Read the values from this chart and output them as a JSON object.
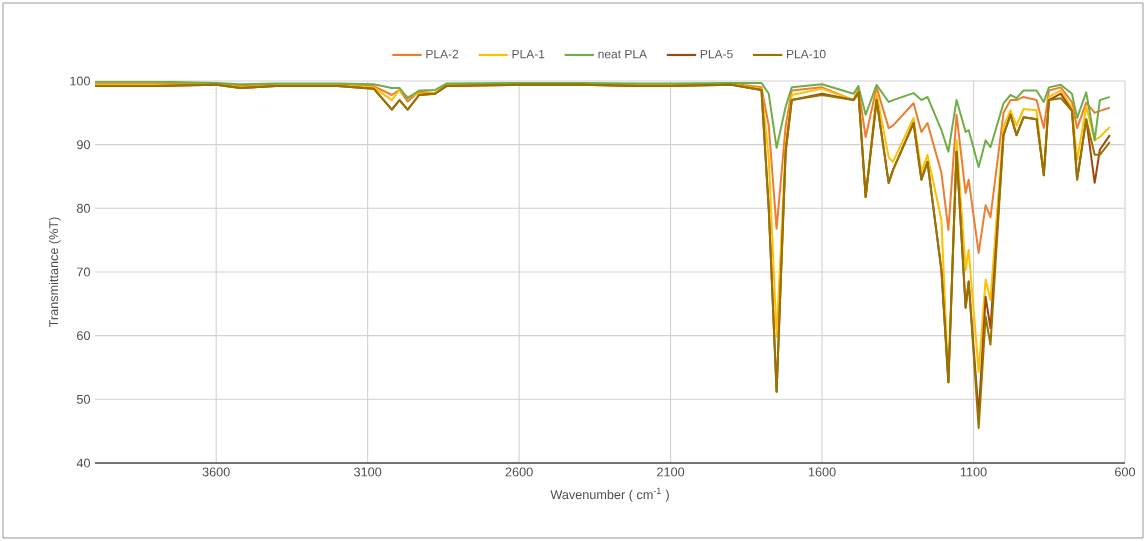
{
  "chart_data": {
    "type": "line",
    "xlabel": "Wavenumber ( cm$^{-1}$ )",
    "ylabel": "Transmittance (%T)",
    "x": [
      4000,
      3800,
      3600,
      3520,
      3400,
      3200,
      3080,
      3020,
      2995,
      2968,
      2930,
      2877,
      2840,
      2600,
      2400,
      2209,
      2100,
      1900,
      1800,
      1776,
      1750,
      1720,
      1700,
      1600,
      1496,
      1480,
      1456,
      1420,
      1380,
      1366,
      1298,
      1272,
      1252,
      1206,
      1183,
      1156,
      1126,
      1116,
      1083,
      1060,
      1044,
      1001,
      978,
      958,
      935,
      892,
      868,
      851,
      812,
      775,
      758,
      728,
      700,
      683,
      650
    ],
    "series": [
      {
        "name": "PLA-2",
        "color": "#ed7d31",
        "values": [
          99.6,
          99.6,
          99.6,
          99.2,
          99.4,
          99.4,
          99.2,
          97.8,
          98.6,
          96.8,
          98.3,
          98.1,
          99.4,
          99.6,
          99.6,
          99.4,
          99.4,
          99.6,
          99,
          93,
          76.8,
          93,
          98.5,
          99,
          97,
          98.8,
          91.2,
          99,
          92.6,
          93,
          96.5,
          92,
          93.4,
          85.6,
          76.6,
          94.7,
          82.4,
          84.5,
          73,
          80.5,
          78.6,
          95,
          97,
          97,
          97.5,
          97,
          92.6,
          98.5,
          99,
          96.7,
          92.6,
          96.6,
          95,
          95.3,
          95.8
        ]
      },
      {
        "name": "PLA-1",
        "color": "#ffc000",
        "values": [
          99.4,
          99.4,
          99.5,
          99,
          99.3,
          99.3,
          99,
          97,
          98.6,
          97.5,
          98,
          98.1,
          99.3,
          99.5,
          99.5,
          99.3,
          99.3,
          99.5,
          98.8,
          88,
          59.8,
          90,
          97.8,
          98.8,
          97,
          98.5,
          81.8,
          98,
          88,
          87.3,
          94.2,
          85.7,
          88.4,
          78.2,
          52.7,
          90.7,
          70.3,
          73.5,
          54.3,
          68.8,
          65.6,
          92.8,
          95.4,
          93,
          95.6,
          95.4,
          85.2,
          97.5,
          98.5,
          95.8,
          87.6,
          96,
          90.7,
          91.2,
          92.8
        ]
      },
      {
        "name": "neat PLA",
        "color": "#70ad47",
        "values": [
          99.9,
          99.9,
          99.7,
          99.5,
          99.6,
          99.6,
          99.5,
          98.9,
          98.9,
          97.3,
          98.5,
          98.6,
          99.6,
          99.7,
          99.7,
          99.6,
          99.6,
          99.7,
          99.7,
          98,
          89.5,
          96,
          99,
          99.5,
          98,
          99.2,
          94.7,
          99.4,
          96.7,
          97,
          98.1,
          97,
          97.5,
          92.3,
          88.9,
          97,
          92,
          92.3,
          86.5,
          90.7,
          89.6,
          96.5,
          97.8,
          97.3,
          98.5,
          98.5,
          96.7,
          99,
          99.4,
          98,
          94.2,
          98.2,
          90.7,
          97,
          97.5
        ]
      },
      {
        "name": "PLA-5",
        "color": "#9e480e",
        "values": [
          99.2,
          99.2,
          99.4,
          98.9,
          99.2,
          99.2,
          98.8,
          95.5,
          97,
          95.5,
          97.8,
          98,
          99.2,
          99.4,
          99.4,
          99.2,
          99.2,
          99.4,
          98.6,
          80,
          51.2,
          89,
          97,
          98,
          97,
          98.2,
          81.8,
          97,
          84,
          86,
          93.4,
          84.5,
          87.3,
          70.3,
          52.7,
          88.9,
          64.4,
          68.5,
          47.6,
          66.1,
          61.2,
          91.5,
          94.7,
          91.5,
          94.3,
          94,
          85.2,
          97,
          98,
          95.3,
          84.5,
          94,
          84,
          89.2,
          91.5
        ]
      },
      {
        "name": "PLA-10",
        "color": "#997300",
        "values": [
          99.2,
          99.2,
          99.4,
          98.9,
          99.2,
          99.2,
          98.8,
          95.5,
          97,
          95.5,
          97.8,
          98,
          99.2,
          99.4,
          99.4,
          99.2,
          99.2,
          99.4,
          98.6,
          80,
          51.2,
          89,
          97,
          97.8,
          97,
          98.2,
          81.8,
          97,
          84,
          86,
          93.4,
          84.5,
          87.3,
          70.3,
          52.7,
          88.9,
          64.4,
          68.5,
          45.5,
          63,
          58.6,
          91.5,
          94.7,
          91.5,
          94.3,
          94,
          85.2,
          97,
          97.3,
          95.3,
          84.5,
          94,
          88.4,
          88.4,
          90.4
        ]
      }
    ],
    "xlim": [
      4000,
      600
    ],
    "xticks": [
      3600,
      3100,
      2600,
      2100,
      1600,
      1100,
      600
    ],
    "ylim": [
      40,
      100
    ],
    "yticks": [
      40,
      50,
      60,
      70,
      80,
      90,
      100
    ],
    "grid": true,
    "legend": "top",
    "line_style": "solid",
    "marker": "none"
  }
}
